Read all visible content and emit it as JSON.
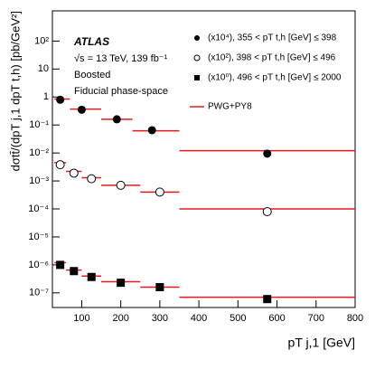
{
  "chart_data": {
    "type": "scatter",
    "log_y": true,
    "x_label": "pT j,1 [GeV]",
    "y_label": "dσtt̄/(dpT j,1 dpT t,h) [pb/GeV²]",
    "annotations": [
      "ATLAS",
      "√s = 13 TeV, 139 fb⁻¹",
      "Boosted",
      "Fiducial phase-space"
    ],
    "xlim": [
      25,
      800
    ],
    "xticks": [
      100,
      200,
      300,
      400,
      500,
      600,
      700,
      800
    ],
    "ylim": [
      3e-08,
      1200
    ],
    "yticks": [
      {
        "value": 1e-07,
        "label": "10⁻⁷"
      },
      {
        "value": 1e-06,
        "label": "10⁻⁶"
      },
      {
        "value": 1e-05,
        "label": "10⁻⁵"
      },
      {
        "value": 0.0001,
        "label": "10⁻⁴"
      },
      {
        "value": 0.001,
        "label": "10⁻³"
      },
      {
        "value": 0.01,
        "label": "10⁻²"
      },
      {
        "value": 0.1,
        "label": "10⁻¹"
      },
      1,
      10,
      {
        "value": 100,
        "label": "10²"
      }
    ],
    "series": [
      {
        "name": "(x10⁴), 355 < pT t,h [GeV] ≤ 398",
        "marker": "circle",
        "color": "#000000",
        "x": [
          45,
          100,
          190,
          280,
          575
        ],
        "values": [
          0.8,
          0.35,
          0.16,
          0.065,
          0.0095
        ]
      },
      {
        "name": "(x10²), 398 < pT t,h [GeV] ≤ 496",
        "marker": "open-circle",
        "color": "#000000",
        "x": [
          45,
          80,
          125,
          200,
          300,
          575
        ],
        "values": [
          0.0038,
          0.0019,
          0.0012,
          0.0007,
          0.0004,
          8e-05
        ]
      },
      {
        "name": "(x10⁰), 496 < pT t,h [GeV] ≤ 2000",
        "marker": "square",
        "color": "#000000",
        "x": [
          45,
          80,
          125,
          200,
          300,
          575
        ],
        "values": [
          1e-06,
          6e-07,
          3.7e-07,
          2.3e-07,
          1.6e-07,
          6e-08
        ]
      },
      {
        "name": "PWG+PY8",
        "marker": "step",
        "color": "#e41a1c",
        "segments": [
          {
            "bins": [
              30,
              70,
              150,
              230,
              350,
              800
            ],
            "values": [
              0.85,
              0.37,
              0.16,
              0.062,
              0.012
            ]
          },
          {
            "bins": [
              30,
              60,
              100,
              150,
              250,
              350,
              800
            ],
            "values": [
              0.0045,
              0.0022,
              0.0013,
              0.0007,
              0.0004,
              0.0001
            ]
          },
          {
            "bins": [
              30,
              60,
              100,
              150,
              250,
              350,
              800
            ],
            "values": [
              1.2e-06,
              6.5e-07,
              4e-07,
              2.5e-07,
              1.6e-07,
              7e-08
            ]
          }
        ]
      }
    ]
  }
}
